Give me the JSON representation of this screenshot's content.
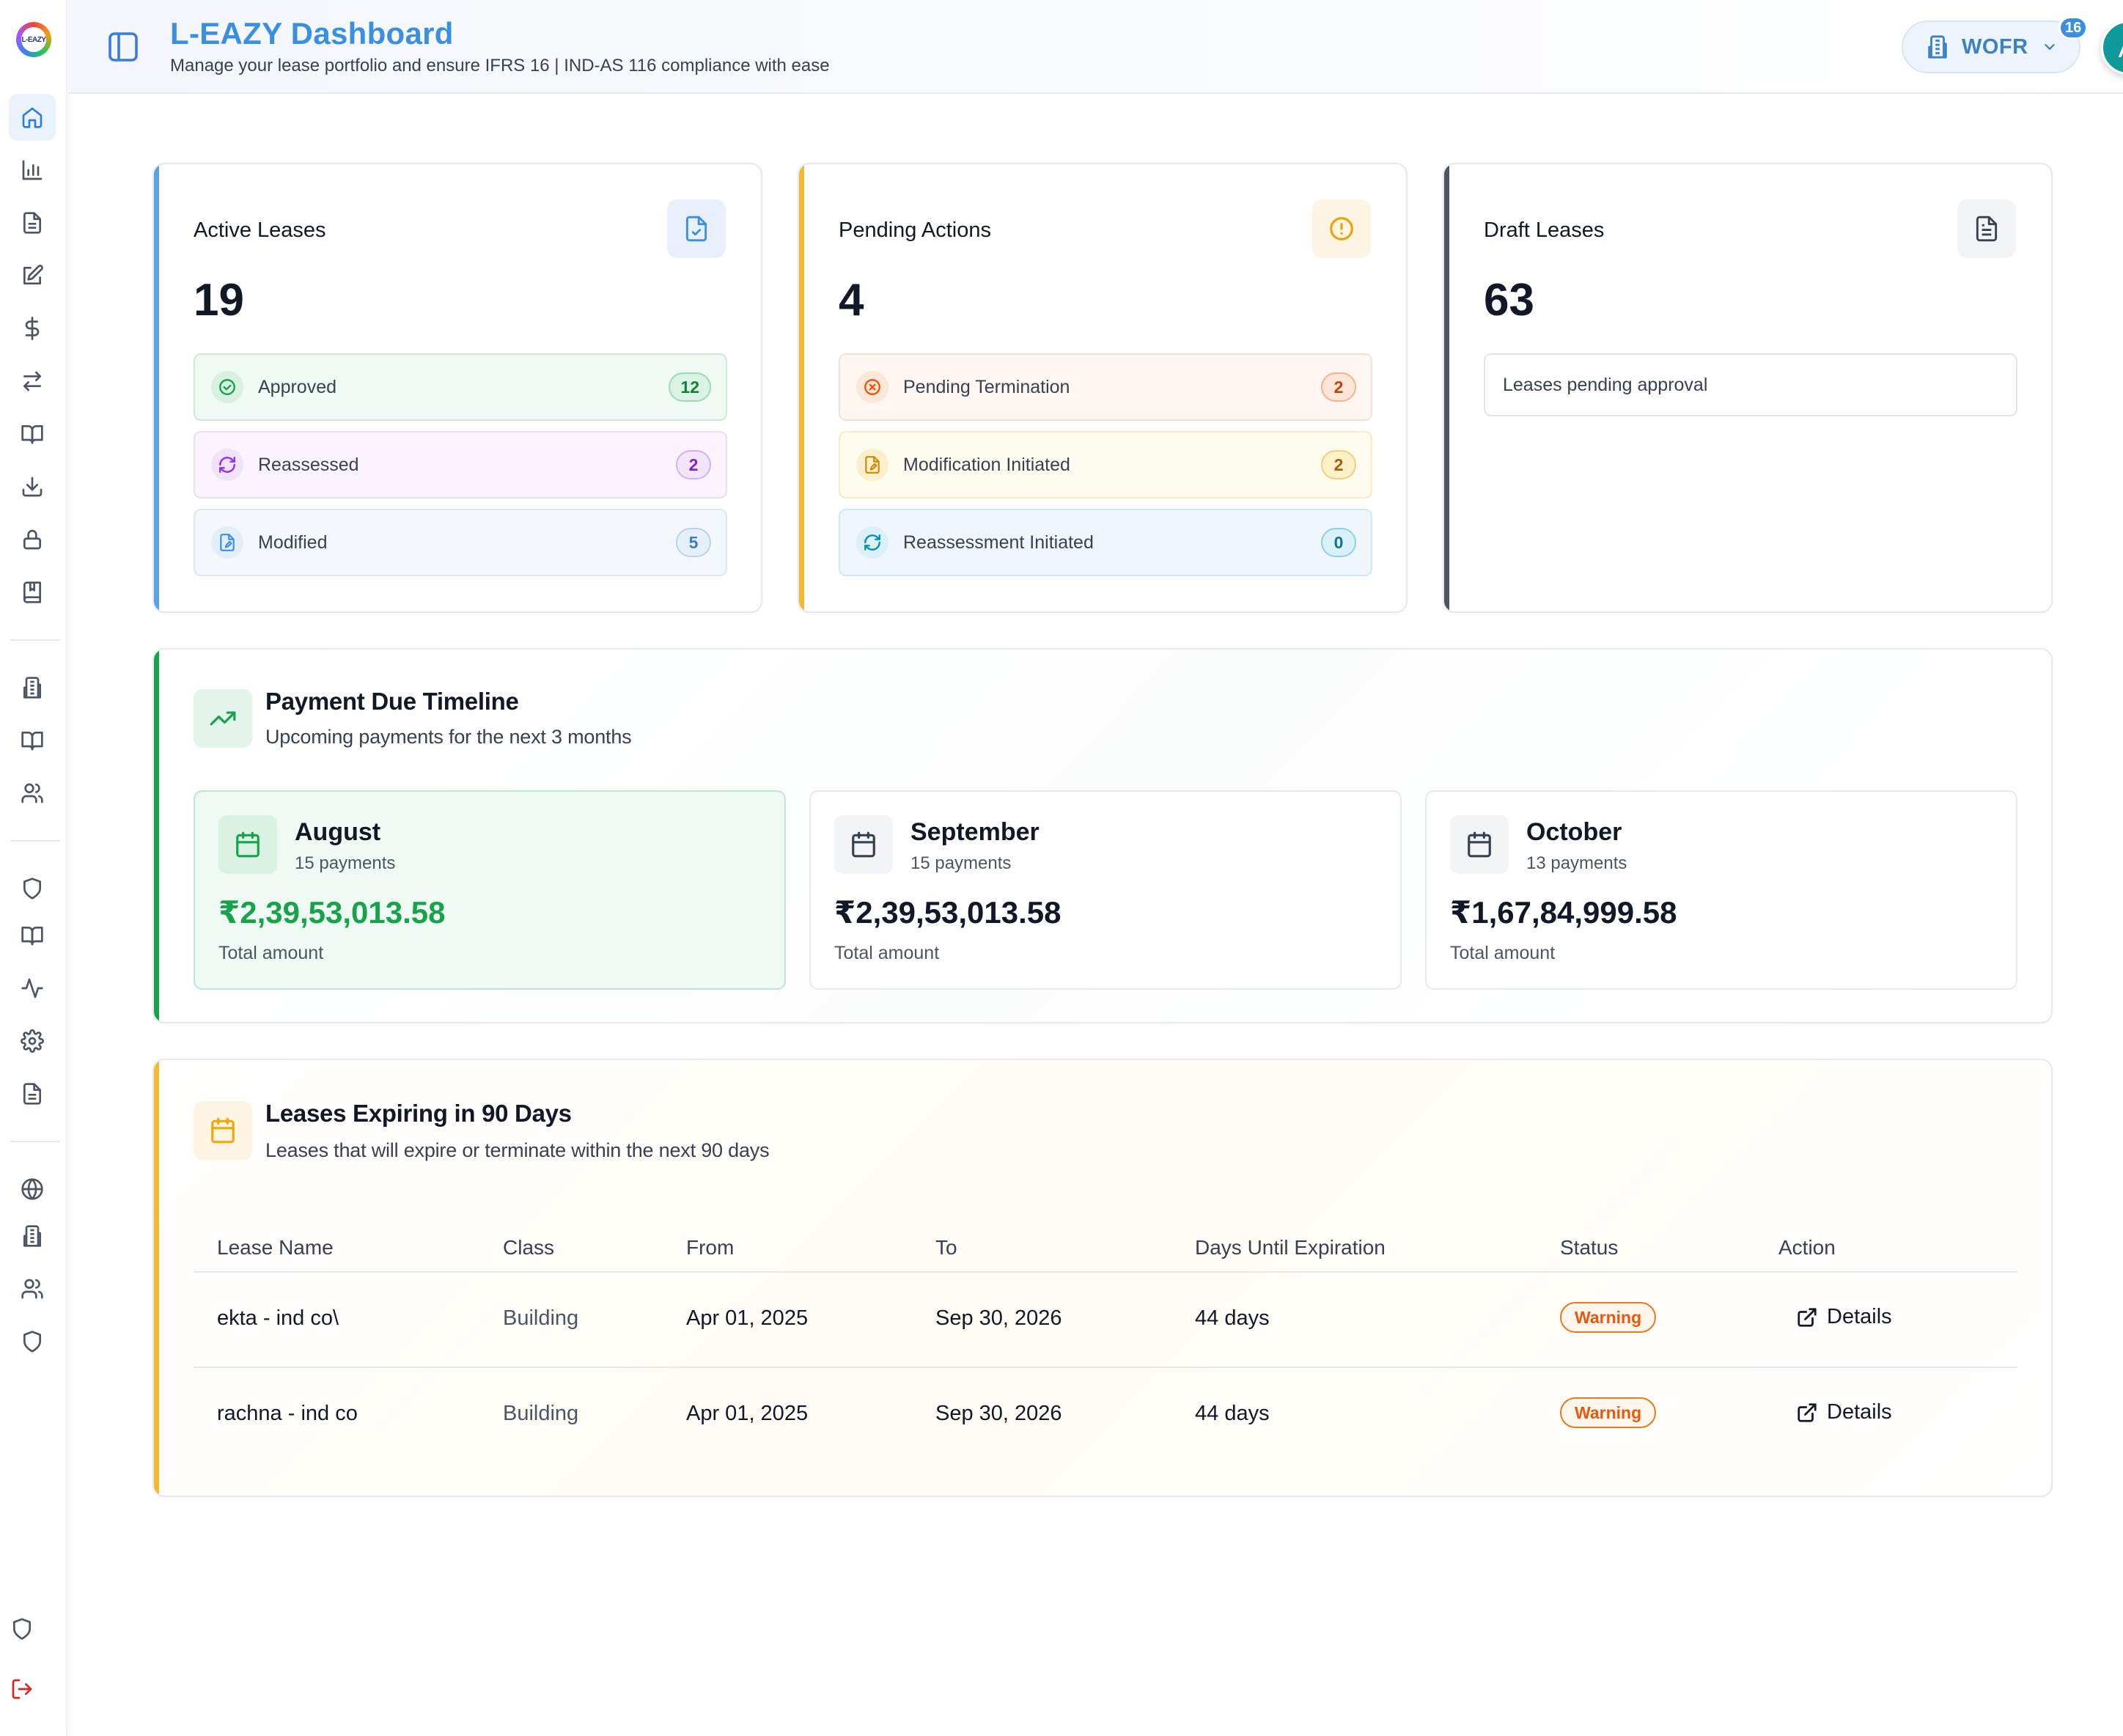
{
  "app": {
    "title": "L-EAZY Dashboard",
    "subtitle": "Manage your lease portfolio and ensure IFRS 16 | IND-AS 116 compliance with ease",
    "logo_text": "L-EAZY"
  },
  "header": {
    "org_name": "WOFR",
    "org_badge": "16",
    "avatar_initial": "A"
  },
  "sidebar": {
    "groups": [
      [
        "home-icon",
        "bar-chart-icon",
        "file-text-icon",
        "edit-icon",
        "dollar-icon",
        "arrows-icon",
        "book-open-icon",
        "download-icon",
        "lock-icon",
        "book-icon"
      ],
      [
        "building-icon",
        "book-open-icon",
        "users-icon"
      ],
      [
        "shield-icon",
        "book-open-icon",
        "activity-icon",
        "settings-icon",
        "file-text-icon"
      ],
      [
        "globe-icon",
        "building-icon",
        "users-icon",
        "shield-icon"
      ]
    ],
    "bottom": [
      "shield-icon",
      "logout-icon"
    ]
  },
  "colors": {
    "blue": "#3b8fe0",
    "yellow": "#f5b82e",
    "slate": "#4b5563",
    "green": "#16a34a",
    "orange": "#ea580c"
  },
  "active_leases": {
    "title": "Active Leases",
    "value": "19",
    "rows": [
      {
        "label": "Approved",
        "count": "12"
      },
      {
        "label": "Reassessed",
        "count": "2"
      },
      {
        "label": "Modified",
        "count": "5"
      }
    ]
  },
  "pending_actions": {
    "title": "Pending Actions",
    "value": "4",
    "rows": [
      {
        "label": "Pending Termination",
        "count": "2"
      },
      {
        "label": "Modification Initiated",
        "count": "2"
      },
      {
        "label": "Reassessment Initiated",
        "count": "0"
      }
    ]
  },
  "draft_leases": {
    "title": "Draft Leases",
    "value": "63",
    "note": "Leases pending approval"
  },
  "payment_timeline": {
    "title": "Payment Due Timeline",
    "subtitle": "Upcoming payments for the next 3 months",
    "months": [
      {
        "name": "August",
        "count": "15 payments",
        "amount": "₹2,39,53,013.58",
        "label": "Total amount"
      },
      {
        "name": "September",
        "count": "15 payments",
        "amount": "₹2,39,53,013.58",
        "label": "Total amount"
      },
      {
        "name": "October",
        "count": "13 payments",
        "amount": "₹1,67,84,999.58",
        "label": "Total amount"
      }
    ]
  },
  "expiring": {
    "title": "Leases Expiring in 90 Days",
    "subtitle": "Leases that will expire or terminate within the next 90 days",
    "columns": [
      "Lease Name",
      "Class",
      "From",
      "To",
      "Days Until Expiration",
      "Status",
      "Action"
    ],
    "rows": [
      {
        "name": "ekta - ind co\\",
        "class": "Building",
        "from": "Apr 01, 2025",
        "to": "Sep 30, 2026",
        "days": "44 days",
        "status": "Warning",
        "action": "Details"
      },
      {
        "name": "rachna - ind co",
        "class": "Building",
        "from": "Apr 01, 2025",
        "to": "Sep 30, 2026",
        "days": "44 days",
        "status": "Warning",
        "action": "Details"
      }
    ]
  }
}
